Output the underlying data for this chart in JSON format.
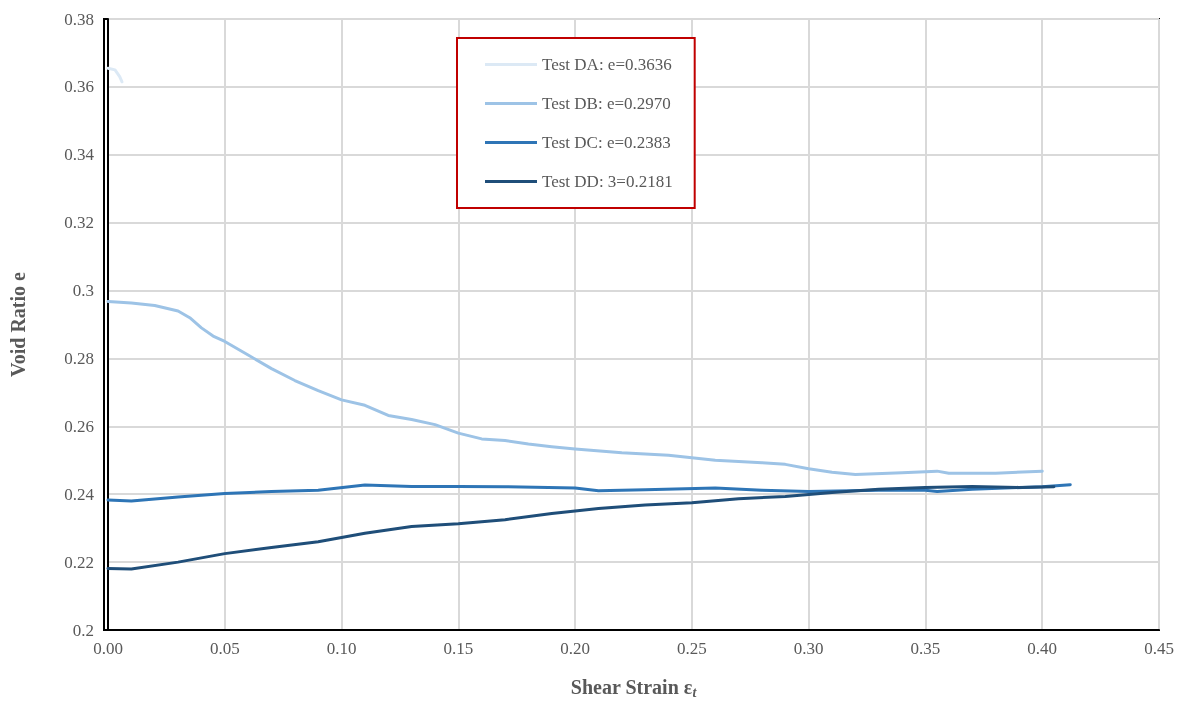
{
  "chart_data": {
    "type": "line",
    "xlabel": "Shear Strain ε$_{t}$",
    "ylabel": "Void Ratio e",
    "xlim": [
      0,
      0.45
    ],
    "xticks": [
      {
        "value": 0,
        "label": "0.00"
      },
      {
        "value": 0.05,
        "label": "0.05"
      },
      {
        "value": 0.1,
        "label": "0.10"
      },
      {
        "value": 0.15,
        "label": "0.15"
      },
      {
        "value": 0.2,
        "label": "0.20"
      },
      {
        "value": 0.25,
        "label": "0.25"
      },
      {
        "value": 0.3,
        "label": "0.30"
      },
      {
        "value": 0.35,
        "label": "0.35"
      },
      {
        "value": 0.4,
        "label": "0.40"
      },
      {
        "value": 0.45,
        "label": "0.45"
      }
    ],
    "ylim": [
      0.2,
      0.38
    ],
    "yticks": [
      0.2,
      0.22,
      0.24,
      0.26,
      0.28,
      0.3,
      0.32,
      0.34,
      0.36,
      0.38
    ],
    "grid": true,
    "legend": "top",
    "marker": "none",
    "line_style": "solid",
    "series": [
      {
        "name": "Test DA: e=0.3636",
        "color": "#dce9f5",
        "x": [
          0,
          0.003,
          0.005,
          0.006
        ],
        "values": [
          0.3655,
          0.365,
          0.363,
          0.3615
        ]
      },
      {
        "name": "Test DB: e=0.2970",
        "color": "#9dc3e6",
        "x": [
          0,
          0.01,
          0.02,
          0.03,
          0.035,
          0.04,
          0.045,
          0.05,
          0.06,
          0.07,
          0.08,
          0.09,
          0.1,
          0.11,
          0.12,
          0.13,
          0.14,
          0.15,
          0.16,
          0.17,
          0.18,
          0.19,
          0.2,
          0.22,
          0.24,
          0.26,
          0.28,
          0.29,
          0.3,
          0.31,
          0.32,
          0.34,
          0.355,
          0.36,
          0.38,
          0.4
        ],
        "values": [
          0.2968,
          0.2963,
          0.2956,
          0.294,
          0.292,
          0.289,
          0.2866,
          0.285,
          0.281,
          0.277,
          0.2735,
          0.2705,
          0.2678,
          0.2662,
          0.2632,
          0.262,
          0.2605,
          0.258,
          0.2563,
          0.2558,
          0.2548,
          0.254,
          0.2533,
          0.2522,
          0.2515,
          0.25,
          0.2493,
          0.2488,
          0.2475,
          0.2465,
          0.2458,
          0.2463,
          0.2468,
          0.2462,
          0.2462,
          0.2468
        ]
      },
      {
        "name": "Test DC: e=0.2383",
        "color": "#2e75b6",
        "x": [
          0,
          0.01,
          0.03,
          0.05,
          0.07,
          0.09,
          0.11,
          0.13,
          0.15,
          0.17,
          0.2,
          0.21,
          0.23,
          0.26,
          0.28,
          0.3,
          0.33,
          0.35,
          0.355,
          0.37,
          0.4,
          0.412
        ],
        "values": [
          0.2383,
          0.238,
          0.2392,
          0.2402,
          0.2408,
          0.2412,
          0.2427,
          0.2423,
          0.2423,
          0.2422,
          0.2418,
          0.241,
          0.2413,
          0.2418,
          0.2412,
          0.2408,
          0.2412,
          0.2412,
          0.2408,
          0.2415,
          0.2422,
          0.2428
        ]
      },
      {
        "name": "Test DD: 3=0.2181",
        "color": "#1f4e79",
        "x": [
          0,
          0.01,
          0.03,
          0.05,
          0.07,
          0.09,
          0.11,
          0.13,
          0.15,
          0.17,
          0.19,
          0.21,
          0.23,
          0.25,
          0.27,
          0.29,
          0.31,
          0.33,
          0.35,
          0.37,
          0.39,
          0.405
        ],
        "values": [
          0.2181,
          0.218,
          0.22,
          0.2225,
          0.2243,
          0.226,
          0.2285,
          0.2305,
          0.2313,
          0.2325,
          0.2343,
          0.2358,
          0.2368,
          0.2375,
          0.2387,
          0.2393,
          0.2405,
          0.2415,
          0.242,
          0.2423,
          0.242,
          0.2422
        ]
      }
    ]
  }
}
